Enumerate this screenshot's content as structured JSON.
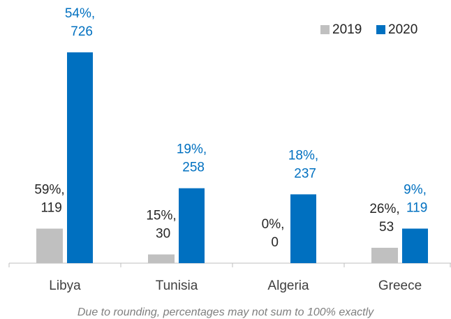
{
  "chart_data": {
    "type": "bar",
    "categories": [
      "Libya",
      "Tunisia",
      "Algeria",
      "Greece"
    ],
    "series": [
      {
        "name": "2019",
        "color": "#c0c0c0",
        "values": [
          119,
          30,
          0,
          53
        ],
        "value_labels": [
          "59%, 119",
          "15%, 30",
          "0%, 0",
          "26%, 53"
        ]
      },
      {
        "name": "2020",
        "color": "#0070c0",
        "values": [
          726,
          258,
          237,
          119
        ],
        "value_labels": [
          "54%, 726",
          "19%, 258",
          "18%, 237",
          "9%, 119"
        ]
      }
    ],
    "legend": "top-right",
    "footnote": "Due to rounding, percentages may not sum to 100% exactly"
  }
}
